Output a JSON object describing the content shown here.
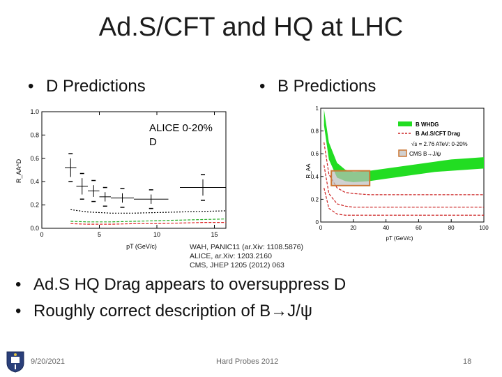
{
  "slide": {
    "title": "Ad.S/CFT and HQ at LHC",
    "bullets_top": [
      {
        "text": "D Predictions"
      },
      {
        "text": "B Predictions"
      }
    ],
    "bullets_bottom": [
      {
        "text": "Ad.S HQ Drag appears to oversuppress D"
      },
      {
        "text": "Roughly correct description of B→J/ψ"
      }
    ],
    "bullet_char": "•",
    "references": [
      "WAH, PANIC11 (ar.Xiv: 1108.5876)",
      "ALICE, ar.Xiv: 1203.2160",
      "CMS, JHEP 1205 (2012) 063"
    ],
    "footer": {
      "date": "9/20/2021",
      "center": "Hard Probes 2012",
      "page": "18"
    }
  },
  "chart_data": [
    {
      "type": "scatter",
      "title": "",
      "annotation": [
        "ALICE 0-20%",
        "D"
      ],
      "xlabel": "pT (GeV/c)",
      "ylabel": "R_AA^D",
      "xlim": [
        0,
        16
      ],
      "ylim": [
        0,
        1.0
      ],
      "x_ticks": [
        "0",
        "5",
        "10",
        "15"
      ],
      "y_ticks": [
        "0.0",
        "0.2",
        "0.4",
        "0.6",
        "0.8",
        "1.0"
      ],
      "series": [
        {
          "type": "points",
          "x": [
            2.5,
            3.5,
            4.5,
            5.5,
            7,
            9.5,
            14
          ],
          "xerr": [
            0.5,
            0.5,
            0.5,
            0.5,
            1,
            1.5,
            2
          ],
          "y": [
            0.52,
            0.36,
            0.32,
            0.27,
            0.26,
            0.25,
            0.35
          ],
          "yerr": [
            0.08,
            0.07,
            0.05,
            0.04,
            0.04,
            0.04,
            0.07
          ]
        },
        {
          "type": "curve",
          "style": "black-dotted",
          "x": [
            2.5,
            4,
            6,
            8,
            10,
            12,
            14,
            16
          ],
          "y": [
            0.16,
            0.14,
            0.13,
            0.13,
            0.135,
            0.14,
            0.145,
            0.15
          ]
        },
        {
          "type": "curve",
          "style": "green-dashed",
          "x": [
            2.5,
            4,
            6,
            8,
            10,
            12,
            14,
            16
          ],
          "y": [
            0.06,
            0.055,
            0.055,
            0.06,
            0.065,
            0.07,
            0.075,
            0.08
          ]
        },
        {
          "type": "curve",
          "style": "red-dashed",
          "x": [
            2.5,
            4,
            6,
            8,
            10,
            12,
            14,
            16
          ],
          "y": [
            0.04,
            0.035,
            0.035,
            0.04,
            0.04,
            0.045,
            0.05,
            0.05
          ]
        }
      ]
    },
    {
      "type": "line",
      "title": "",
      "xlabel": "pT (GeV/c)",
      "ylabel": "R_AA",
      "xlim": [
        0,
        100
      ],
      "ylim": [
        0,
        1
      ],
      "x_ticks": [
        "0",
        "20",
        "40",
        "60",
        "80",
        "100"
      ],
      "y_ticks": [
        "0",
        "0.2",
        "0.4",
        "0.6",
        "0.8",
        "1"
      ],
      "legend": [
        "B WHDG",
        "B Ad.S/CFT Drag",
        "√s = 2.76 ATeV: 0-20%",
        "CMS B→J/ψ"
      ],
      "colors": {
        "band": "#22dd22",
        "drag": "#cc2222",
        "cms": "#cc7733"
      },
      "band_x": [
        2,
        5,
        10,
        15,
        20,
        30,
        40,
        50,
        60,
        70,
        80,
        90,
        100
      ],
      "band_low": [
        0.85,
        0.55,
        0.39,
        0.36,
        0.35,
        0.36,
        0.38,
        0.4,
        0.42,
        0.44,
        0.45,
        0.46,
        0.47
      ],
      "band_high": [
        0.99,
        0.7,
        0.52,
        0.46,
        0.44,
        0.45,
        0.47,
        0.49,
        0.51,
        0.53,
        0.55,
        0.56,
        0.57
      ],
      "drag_curves": [
        {
          "x": [
            2,
            5,
            10,
            15,
            20,
            30,
            50,
            75,
            100
          ],
          "y": [
            0.7,
            0.42,
            0.3,
            0.26,
            0.25,
            0.24,
            0.24,
            0.24,
            0.24
          ]
        },
        {
          "x": [
            2,
            5,
            10,
            15,
            20,
            30,
            50,
            75,
            100
          ],
          "y": [
            0.5,
            0.25,
            0.16,
            0.14,
            0.13,
            0.13,
            0.13,
            0.13,
            0.13
          ]
        },
        {
          "x": [
            2,
            5,
            10,
            15,
            20,
            30,
            50,
            75,
            100
          ],
          "y": [
            0.3,
            0.12,
            0.07,
            0.06,
            0.06,
            0.06,
            0.06,
            0.06,
            0.06
          ]
        }
      ],
      "cms_box": {
        "x": [
          6.5,
          30
        ],
        "y": [
          0.32,
          0.45
        ]
      }
    }
  ]
}
